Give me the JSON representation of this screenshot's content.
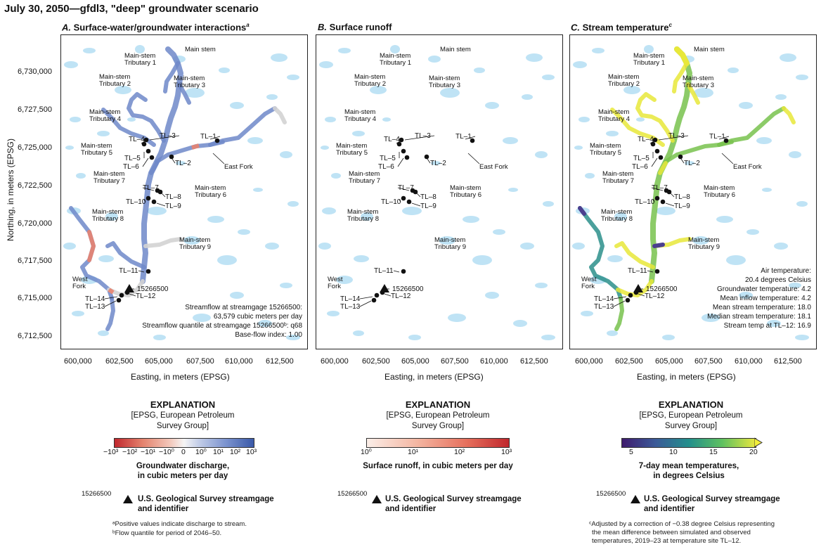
{
  "title": "July 30, 2050—gfdl3, \"deep\" groundwater scenario",
  "panels": [
    {
      "letter": "A.",
      "title": "Surface-water/groundwater interactions",
      "title_sup": "a"
    },
    {
      "letter": "B.",
      "title": "Surface runoff",
      "title_sup": ""
    },
    {
      "letter": "C.",
      "title": "Stream temperature",
      "title_sup": "c"
    }
  ],
  "axes": {
    "ylabel": "Northing, in meters (EPSG)",
    "xlabel": "Easting, in meters (EPSG)",
    "y_ticks": [
      "6,730,000",
      "6,727,500",
      "6,725,000",
      "6,722,500",
      "6,720,000",
      "6,717,500",
      "6,715,000",
      "6,712,500"
    ],
    "x_ticks": [
      "600,000",
      "602,500",
      "605,000",
      "607,500",
      "610,000",
      "612,500"
    ]
  },
  "map_labels": {
    "main_stem": "Main stem",
    "trib1": [
      "Main-stem",
      "Tributary 1"
    ],
    "trib2": [
      "Main-stem",
      "Tributary 2"
    ],
    "trib3": [
      "Main-stem",
      "Tributary 3"
    ],
    "trib4": [
      "Main-stem",
      "Tributary 4"
    ],
    "trib5": [
      "Main-stem",
      "Tributary 5"
    ],
    "trib6": [
      "Main-stem",
      "Tributary 6"
    ],
    "trib7": [
      "Main-stem",
      "Tributary 7"
    ],
    "trib8": [
      "Main-stem",
      "Tributary 8"
    ],
    "trib9": [
      "Main-stem",
      "Tributary 9"
    ],
    "east_fork": "East Fork",
    "west_fork": [
      "West",
      "Fork"
    ],
    "gage_id": "15266500"
  },
  "sites": [
    "TL–1",
    "TL–2",
    "TL–3",
    "TL–4",
    "TL–5",
    "TL–6",
    "TL–7",
    "TL–8",
    "TL–9",
    "TL–10",
    "TL–11",
    "TL–12",
    "TL–13",
    "TL–14"
  ],
  "panel_a_info": [
    "Streamflow at streamgage 15266500:",
    "63,579 cubic meters per day",
    "Streamflow quantile at streamgage 15266500ᵇ: q68",
    "Base-flow index: 1.00"
  ],
  "panel_c_info": [
    "Air temperature:",
    "20.4 degrees Celsius",
    "Groundwater temperature: 4.2",
    "Mean inflow temperature: 4.2",
    "Mean stream temperature: 18.0",
    "Median stream temperature: 18.1",
    "Stream temp at TL–12: 16.9"
  ],
  "explanation": {
    "heading": "EXPLANATION",
    "sub": [
      "[EPSG, European Petroleum",
      "Survey Group]"
    ]
  },
  "colorbars": [
    {
      "ticks": [
        "−10³",
        "−10²",
        "−10¹",
        "−10⁰",
        "0",
        "10⁰",
        "10¹",
        "10²",
        "10³"
      ],
      "title": [
        "Groundwater discharge,",
        "in cubic meters per day"
      ]
    },
    {
      "ticks": [
        "10⁰",
        "10¹",
        "10²",
        "10³"
      ],
      "title": [
        "Surface runoff, in cubic meters per day"
      ]
    },
    {
      "ticks": [
        "5",
        "10",
        "15",
        "20"
      ],
      "title": [
        "7-day mean temperatures,",
        "in degrees Celsius"
      ]
    }
  ],
  "gage_legend": {
    "id": "15266500",
    "label": [
      "U.S. Geological Survey streamgage",
      "and identifier"
    ]
  },
  "footnotes": {
    "a": "ᵃPositive values indicate discharge to stream.",
    "b": "ᵇFlow quantile for period of 2046–50.",
    "c": [
      "ᶜAdjusted by a correction of −0.38 degree Celsius representing",
      "the mean difference between simulated and observed",
      "temperatures, 2019–23 at temperature site TL–12."
    ]
  },
  "colors": {
    "lake": "#bfe3f5",
    "stream_blue": "#6f88c9",
    "stream_red": "#e8836f",
    "stream_grey": "#d3d3d3",
    "temp_yellow": "#e8e83a",
    "temp_green": "#78c24e",
    "temp_teal": "#2b8f8b",
    "temp_purple": "#4b3f8f"
  }
}
